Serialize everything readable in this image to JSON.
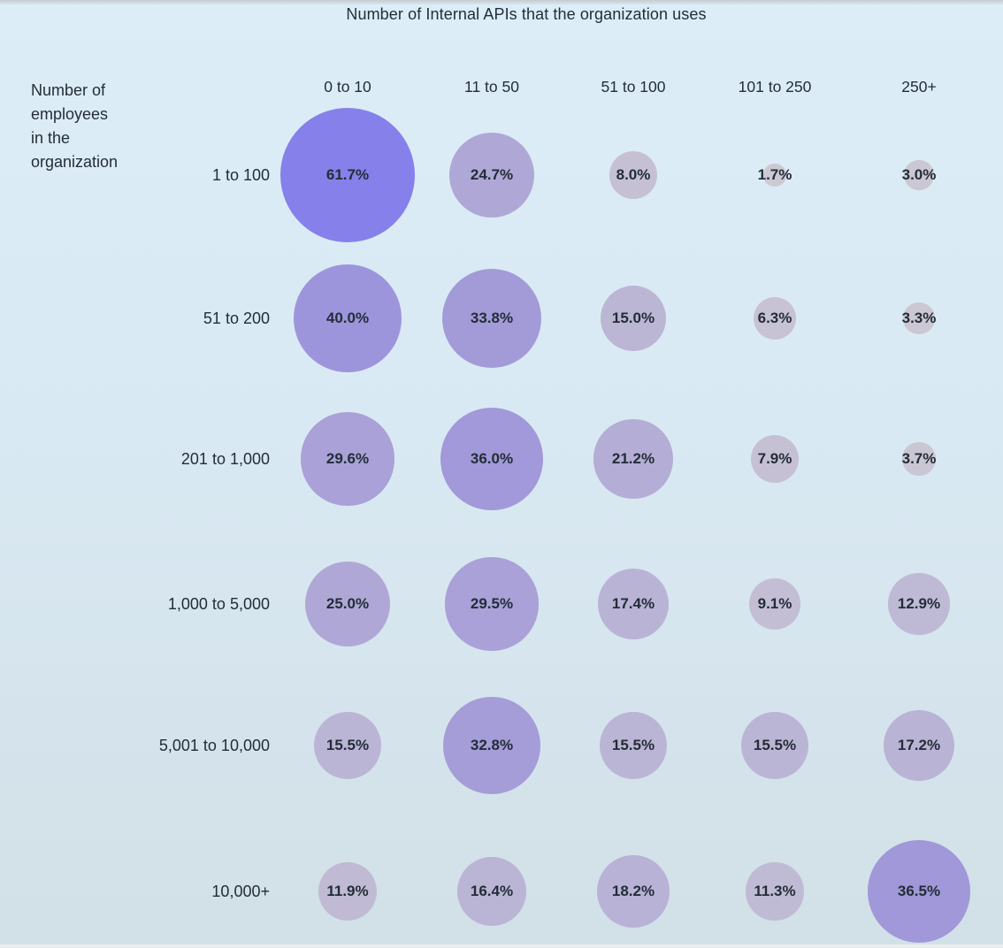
{
  "title": "Number of Internal APIs that the organization uses",
  "row_axis_label": "Number of\nemployees\nin the\norganization",
  "colors": {
    "background": "#d9e9f3",
    "text": "#232d37",
    "bubble_low": "#cdc9d3",
    "bubble_mid": "#a29ad8",
    "bubble_high": "#8680ea"
  },
  "chart_data": {
    "type": "bubble",
    "title": "Number of Internal APIs that the organization uses",
    "x_axis_label": "Number of Internal APIs that the organization uses",
    "y_axis_label": "Number of employees in the organization",
    "x_categories": [
      "0 to 10",
      "11 to 50",
      "51 to 100",
      "101 to 250",
      "250+"
    ],
    "y_categories": [
      "1 to 100",
      "51 to 200",
      "201 to 1,000",
      "1,000 to 5,000",
      "5,001 to 10,000",
      "10,000+"
    ],
    "values_percent": [
      [
        61.7,
        24.7,
        8.0,
        1.7,
        3.0
      ],
      [
        40.0,
        33.8,
        15.0,
        6.3,
        3.3
      ],
      [
        29.6,
        36.0,
        21.2,
        7.9,
        3.7
      ],
      [
        25.0,
        29.5,
        17.4,
        9.1,
        12.9
      ],
      [
        15.5,
        32.8,
        15.5,
        15.5,
        17.2
      ],
      [
        11.9,
        16.4,
        18.2,
        11.3,
        36.5
      ]
    ],
    "value_format": "percent_one_decimal",
    "size_encoding": "bubble area proportional to value",
    "color_encoding": "gray (low) to purple (high)",
    "legend": "none",
    "grid": "off"
  }
}
